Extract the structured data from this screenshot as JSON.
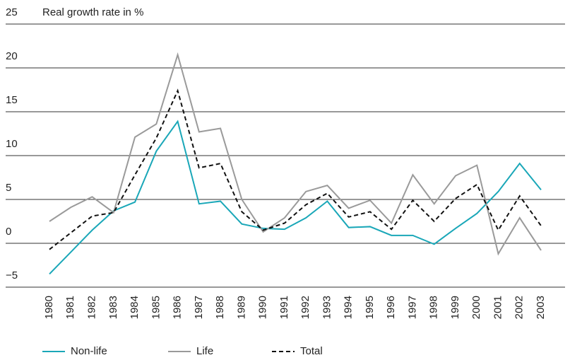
{
  "chart_data": {
    "type": "line",
    "title": "Real growth rate in %",
    "x": [
      "1980",
      "1981",
      "1982",
      "1983",
      "1984",
      "1985",
      "1986",
      "1987",
      "1988",
      "1989",
      "1990",
      "1991",
      "1992",
      "1993",
      "1994",
      "1995",
      "1996",
      "1997",
      "1998",
      "1999",
      "2000",
      "2001",
      "2002",
      "2003"
    ],
    "series": [
      {
        "name": "Non-life",
        "color": "#1aa7b8",
        "dash": false,
        "values": [
          -3.5,
          -1.0,
          1.5,
          3.7,
          4.7,
          10.5,
          13.9,
          4.5,
          4.8,
          2.2,
          1.7,
          1.6,
          2.9,
          4.8,
          1.8,
          1.9,
          0.9,
          0.9,
          -0.1,
          1.7,
          3.4,
          5.9,
          9.1,
          6.1
        ]
      },
      {
        "name": "Life",
        "color": "#9a9a9a",
        "dash": false,
        "values": [
          2.5,
          4.1,
          5.3,
          3.5,
          12.1,
          13.6,
          21.5,
          12.7,
          13.1,
          5.0,
          1.3,
          2.9,
          5.9,
          6.6,
          4.0,
          4.9,
          2.3,
          7.8,
          4.5,
          7.7,
          8.9,
          -1.2,
          2.9,
          -0.8
        ]
      },
      {
        "name": "Total",
        "color": "#111111",
        "dash": true,
        "values": [
          -0.7,
          1.2,
          3.1,
          3.5,
          7.8,
          12.0,
          17.4,
          8.6,
          9.1,
          3.6,
          1.5,
          2.3,
          4.4,
          5.7,
          3.0,
          3.6,
          1.6,
          4.9,
          2.5,
          5.1,
          6.7,
          1.5,
          5.4,
          2.0
        ]
      }
    ],
    "ylim": [
      -5,
      25
    ],
    "yticks": [
      {
        "value": -5,
        "label": "−5"
      },
      0,
      5,
      10,
      15,
      20,
      25
    ],
    "grid": true
  }
}
